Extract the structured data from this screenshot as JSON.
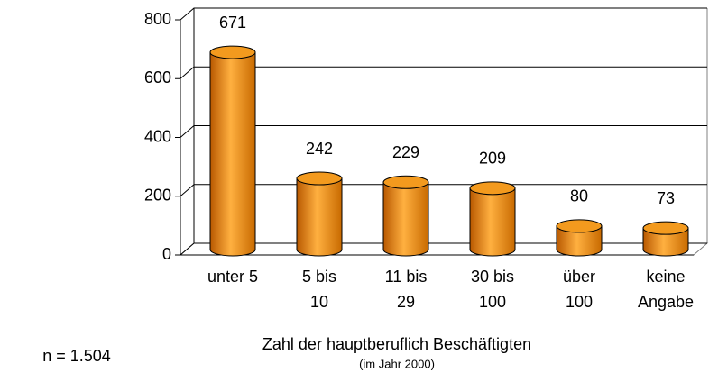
{
  "chart_data": {
    "type": "bar",
    "categories": [
      "unter 5",
      "5 bis 10",
      "11 bis 29",
      "30 bis 100",
      "über 100",
      "keine Angabe"
    ],
    "values": [
      671,
      242,
      229,
      209,
      80,
      73
    ],
    "color": "#f39a1e",
    "ylim": [
      0,
      800
    ],
    "yticks": [
      0,
      200,
      400,
      600,
      800
    ],
    "grid": true,
    "x_label": "Zahl der hauptberuflich Beschäftigten",
    "x_sublabel": "(im Jahr 2000)",
    "note": "n = 1.504"
  }
}
